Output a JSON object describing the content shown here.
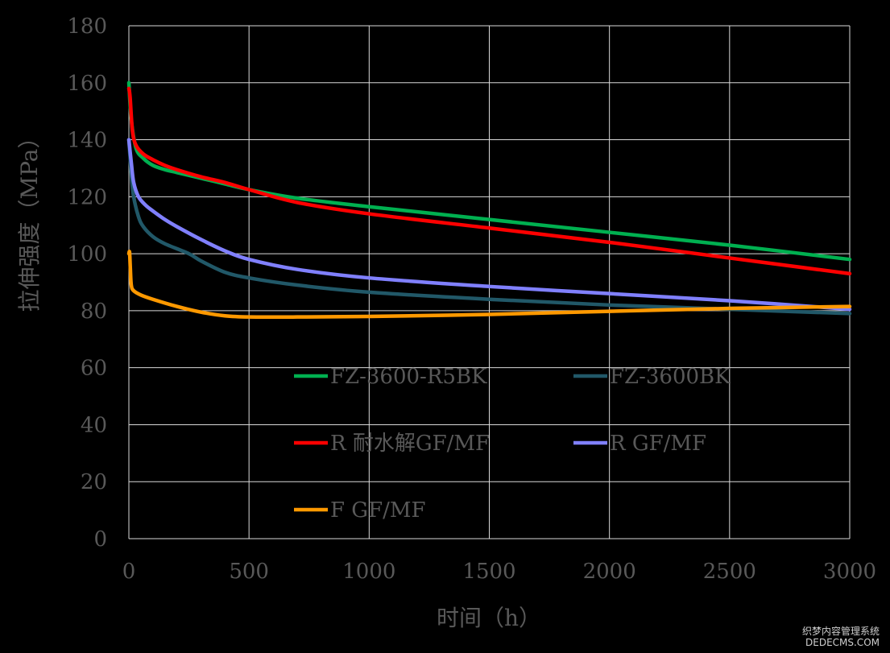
{
  "chart_data": {
    "type": "line",
    "title": "",
    "xlabel": "时间（h）",
    "ylabel": "拉伸强度（MPa）",
    "xlim": [
      0,
      3000
    ],
    "ylim": [
      0,
      180
    ],
    "x_ticks": [
      0,
      500,
      1000,
      1500,
      2000,
      2500,
      3000
    ],
    "y_ticks": [
      0,
      20,
      40,
      60,
      80,
      100,
      120,
      140,
      160,
      180
    ],
    "grid": true,
    "legend_position": "bottom-center inside plot",
    "series": [
      {
        "name": "FZ-3600-R5BK",
        "color": "#00b050",
        "x": [
          0,
          10,
          30,
          60,
          100,
          150,
          200,
          300,
          400,
          500,
          700,
          1000,
          1500,
          2000,
          2500,
          3000
        ],
        "y": [
          160,
          147,
          137,
          133.5,
          131,
          129.5,
          128.5,
          126.5,
          124.5,
          122.5,
          119.5,
          116.5,
          112,
          107.5,
          103,
          98
        ]
      },
      {
        "name": "FZ-3600BK",
        "color": "#215868",
        "x": [
          0,
          10,
          20,
          40,
          60,
          100,
          150,
          250,
          300,
          400,
          500,
          700,
          1000,
          1500,
          2000,
          2500,
          3000
        ],
        "y": [
          140,
          128,
          120,
          113,
          109.5,
          106,
          103.5,
          100,
          97.5,
          93.5,
          91.5,
          89,
          86.5,
          84,
          82,
          80.5,
          79
        ]
      },
      {
        "name": "R 耐水解GF/MF",
        "color": "#ff0000",
        "x": [
          0,
          5,
          15,
          30,
          60,
          100,
          150,
          200,
          300,
          400,
          500,
          700,
          1000,
          1500,
          2000,
          2500,
          3000
        ],
        "y": [
          158,
          155,
          143,
          138,
          135,
          133,
          131,
          129.5,
          127,
          125,
          122.5,
          118,
          114,
          109,
          104,
          98.5,
          93
        ]
      },
      {
        "name": "R GF/MF",
        "color": "#8080ff",
        "x": [
          0,
          10,
          20,
          40,
          70,
          100,
          150,
          200,
          300,
          400,
          500,
          700,
          1000,
          1500,
          2000,
          2500,
          3000
        ],
        "y": [
          140,
          132,
          125,
          120,
          117,
          115,
          112,
          109.5,
          105,
          101,
          98,
          94.5,
          91.5,
          88.5,
          86,
          83.5,
          80.5
        ]
      },
      {
        "name": "F GF/MF",
        "color": "#ff9900",
        "x": [
          0,
          3,
          6,
          10,
          20,
          50,
          100,
          200,
          300,
          400,
          500,
          700,
          1000,
          1500,
          2000,
          2500,
          3000
        ],
        "y": [
          100,
          100.5,
          95,
          89,
          87,
          85.5,
          84,
          81.5,
          79.5,
          78.2,
          77.8,
          77.8,
          78,
          78.7,
          79.8,
          80.8,
          81.5
        ]
      }
    ]
  },
  "watermark": {
    "line1": "织梦内容管理系统",
    "line2": "DEDECMS.COM"
  }
}
